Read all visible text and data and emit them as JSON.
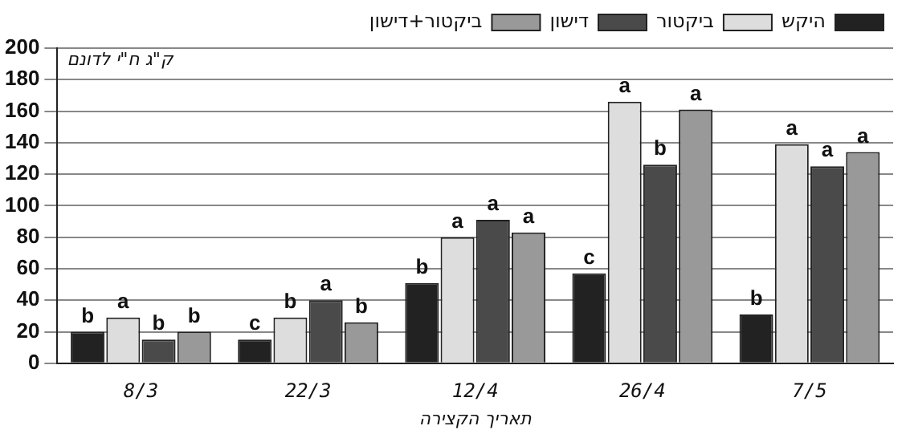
{
  "chart_data": {
    "type": "bar",
    "ylabel": "ק\"ג ח\"י לדונם",
    "xlabel": "תאריך הקצירה",
    "categories": [
      "8/3",
      "22/3",
      "12/4",
      "26/4",
      "7/5"
    ],
    "series": [
      {
        "name": "היקש",
        "color": "#222222",
        "values": [
          20,
          15,
          51,
          57,
          31
        ],
        "value_labels": [
          "b",
          "c",
          "b",
          "c",
          "b"
        ]
      },
      {
        "name": "ביקטור",
        "color": "#dddddd",
        "values": [
          29,
          29,
          80,
          166,
          139
        ],
        "value_labels": [
          "a",
          "b",
          "a",
          "a",
          "a"
        ]
      },
      {
        "name": "דישון",
        "color": "#4a4a4a",
        "values": [
          15,
          40,
          91,
          126,
          125
        ],
        "value_labels": [
          "b",
          "a",
          "a",
          "b",
          "a"
        ]
      },
      {
        "name": "ביקטור+דישון",
        "color": "#999999",
        "values": [
          20,
          26,
          83,
          161,
          134
        ],
        "value_labels": [
          "b",
          "b",
          "a",
          "a",
          "a"
        ]
      }
    ],
    "ylim": [
      0,
      200
    ],
    "yticks": [
      0,
      20,
      40,
      60,
      80,
      100,
      120,
      140,
      160,
      180,
      200
    ],
    "grid": "y",
    "legend": "top"
  }
}
